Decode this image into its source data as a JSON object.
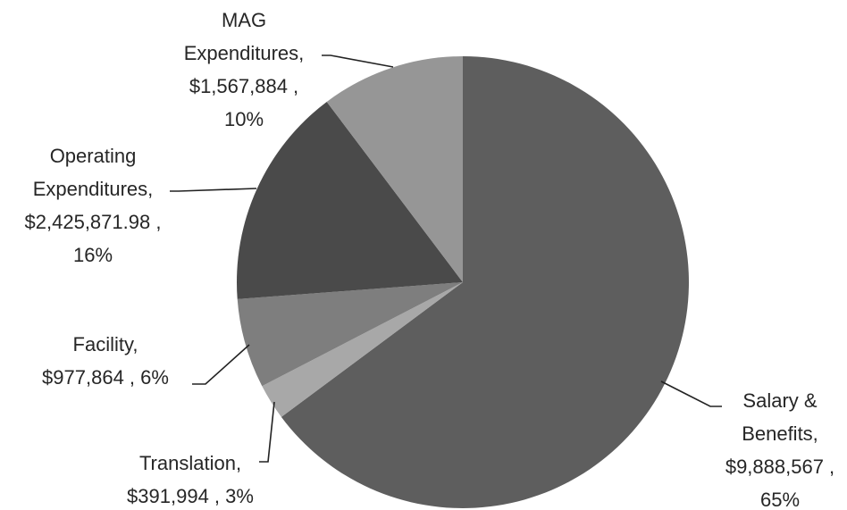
{
  "chart_data": {
    "type": "pie",
    "title": "",
    "legend": "none",
    "start_angle_deg": 0,
    "direction": "clockwise",
    "slices": [
      {
        "name": "Salary & Benefits",
        "value": 9888567,
        "percent": "65%",
        "color": "#5e5e5e",
        "label_lines": [
          "Salary &",
          "Benefits,",
          "$9,888,567  ,",
          "65%"
        ]
      },
      {
        "name": "Translation",
        "value": 391994,
        "percent": "3%",
        "color": "#a8a8a8",
        "label_lines": [
          "Translation,",
          "$391,994  , 3%"
        ]
      },
      {
        "name": "Facility",
        "value": 977864,
        "percent": "6%",
        "color": "#7e7e7e",
        "label_lines": [
          "Facility,",
          "$977,864  , 6%"
        ]
      },
      {
        "name": "Operating Expenditures",
        "value": 2425871.98,
        "percent": "16%",
        "color": "#4a4a4a",
        "label_lines": [
          "Operating",
          "Expenditures,",
          "$2,425,871.98  ,",
          "16%"
        ]
      },
      {
        "name": "MAG Expenditures",
        "value": 1567884,
        "percent": "10%",
        "color": "#969696",
        "label_lines": [
          "MAG",
          "Expenditures,",
          "$1,567,884  ,",
          "10%"
        ]
      }
    ]
  }
}
